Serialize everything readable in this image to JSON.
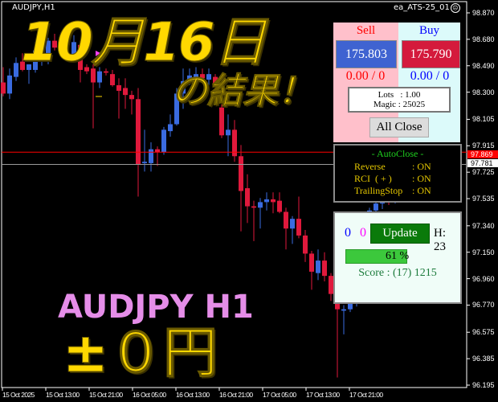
{
  "window": {
    "symbol_title": "AUDJPY,H1",
    "ea_name": "ea_ATS-25_01",
    "ea_status_icon": "sad-face-icon"
  },
  "overlay": {
    "headline_date": "10月16日",
    "headline_suffix": "の結果！",
    "pair_label": "AUDJPY H1",
    "result": "±０円",
    "colors": {
      "headline": "#ffd800",
      "pair": "#e58de8"
    }
  },
  "trade_panel": {
    "sell_label": "Sell",
    "buy_label": "Buy",
    "sell_price": "175.803",
    "buy_price": "175.790",
    "sell_pnl": "0.00 / 0",
    "buy_pnl": "0.00 / 0",
    "lots": "Lots   : 1.00",
    "magic": "Magic : 25025",
    "all_close_label": "All Close",
    "colors": {
      "sell": "#3f63d1",
      "buy": "#d41a3c"
    }
  },
  "autoclose": {
    "title": "- AutoClose -",
    "items": [
      {
        "label": "Reverse",
        "value": ": ON"
      },
      {
        "label": "RCI  ( + )",
        "value": ": ON"
      },
      {
        "label": "TrailingStop",
        "value": ": ON"
      }
    ]
  },
  "stats_panel": {
    "count_blue": "0",
    "count_magenta": "0",
    "update_label": "Update",
    "hours": "H: 23",
    "progress_percent": 61,
    "progress_text": "61 %",
    "score": "Score : (17) 1215"
  },
  "chart_data": {
    "type": "candlestick",
    "symbol": "AUDJPY",
    "timeframe": "H1",
    "ylim": [
      96.195,
      98.87
    ],
    "price_ticks": [
      "98.870",
      "98.680",
      "98.490",
      "98.300",
      "98.105",
      "97.915",
      "97.725",
      "97.535",
      "97.340",
      "97.150",
      "96.960",
      "96.770",
      "96.575",
      "96.385",
      "96.195"
    ],
    "time_ticks": [
      "15 Oct 2025",
      "15 Oct 13:00",
      "15 Oct 21:00",
      "16 Oct 05:00",
      "16 Oct 13:00",
      "16 Oct 21:00",
      "17 Oct 05:00",
      "17 Oct 13:00",
      "17 Oct 21:00"
    ],
    "ask_line": {
      "value": "97.869",
      "color": "#ff0000"
    },
    "bid_line": {
      "value": "97.781",
      "color": "#c0c0c0"
    },
    "colors": {
      "bull": "#3a6be0",
      "bear": "#e0193c"
    },
    "candles": [
      [
        98.37,
        98.48,
        98.27,
        98.29
      ],
      [
        98.29,
        98.47,
        98.25,
        98.42
      ],
      [
        98.41,
        98.55,
        98.38,
        98.51
      ],
      [
        98.52,
        98.58,
        98.45,
        98.46
      ],
      [
        98.46,
        98.5,
        98.36,
        98.5
      ],
      [
        98.46,
        98.66,
        98.44,
        98.6
      ],
      [
        98.55,
        98.69,
        98.49,
        98.56
      ],
      [
        98.54,
        98.69,
        98.5,
        98.67
      ],
      [
        98.67,
        98.72,
        98.6,
        98.62
      ],
      [
        98.66,
        98.73,
        98.62,
        98.68
      ],
      [
        98.68,
        98.74,
        98.6,
        98.64
      ],
      [
        98.55,
        98.71,
        98.52,
        98.66
      ],
      [
        98.64,
        98.67,
        98.37,
        98.46
      ],
      [
        98.48,
        98.5,
        98.43,
        98.45
      ],
      [
        98.47,
        98.5,
        98.04,
        98.37
      ],
      [
        98.37,
        98.48,
        98.33,
        98.45
      ],
      [
        98.45,
        98.47,
        98.42,
        98.44
      ],
      [
        98.43,
        98.46,
        98.34,
        98.35
      ],
      [
        98.35,
        98.4,
        98.11,
        98.31
      ],
      [
        98.33,
        98.4,
        98.18,
        98.28
      ],
      [
        98.28,
        98.31,
        98.14,
        98.25
      ],
      [
        98.25,
        98.33,
        97.55,
        97.78
      ],
      [
        97.79,
        98.03,
        97.73,
        97.8
      ],
      [
        97.79,
        97.94,
        97.73,
        97.89
      ],
      [
        97.89,
        97.91,
        97.77,
        97.87
      ],
      [
        97.87,
        98.05,
        97.85,
        98.03
      ],
      [
        98.02,
        98.14,
        97.98,
        98.07
      ],
      [
        98.07,
        98.33,
        98.06,
        98.29
      ],
      [
        98.29,
        98.47,
        98.18,
        98.38
      ],
      [
        98.38,
        98.47,
        98.35,
        98.42
      ],
      [
        98.39,
        98.48,
        98.34,
        98.43
      ],
      [
        98.43,
        98.47,
        98.37,
        98.4
      ],
      [
        98.39,
        98.47,
        98.33,
        98.43
      ],
      [
        98.41,
        98.43,
        98.29,
        98.35
      ],
      [
        98.19,
        98.31,
        97.97,
        97.99
      ],
      [
        97.99,
        98.14,
        97.84,
        98.03
      ],
      [
        98.03,
        98.1,
        97.8,
        97.84
      ],
      [
        97.84,
        97.92,
        97.3,
        97.59
      ],
      [
        97.61,
        97.71,
        97.36,
        97.48
      ],
      [
        97.48,
        97.52,
        97.23,
        97.47
      ],
      [
        97.47,
        97.54,
        97.32,
        97.51
      ],
      [
        97.51,
        97.58,
        97.45,
        97.53
      ],
      [
        97.53,
        97.58,
        97.43,
        97.51
      ],
      [
        97.52,
        97.58,
        97.43,
        97.44
      ],
      [
        97.44,
        97.47,
        97.17,
        97.32
      ],
      [
        97.32,
        97.41,
        97.21,
        97.39
      ],
      [
        97.39,
        97.55,
        97.25,
        97.27
      ],
      [
        97.27,
        97.31,
        97.08,
        97.14
      ],
      [
        97.14,
        97.16,
        96.88,
        97.01
      ],
      [
        97.0,
        97.17,
        96.95,
        97.09
      ],
      [
        97.09,
        97.15,
        96.94,
        96.98
      ],
      [
        96.98,
        97.0,
        96.8,
        96.85
      ],
      [
        96.78,
        96.8,
        96.25,
        96.74
      ],
      [
        96.73,
        96.77,
        96.56,
        96.74
      ],
      [
        96.74,
        96.8,
        96.72,
        96.78
      ],
      [
        96.78,
        96.98,
        96.76,
        96.95
      ],
      [
        96.95,
        97.22,
        96.93,
        97.2
      ],
      [
        97.2,
        97.47,
        97.18,
        97.45
      ],
      [
        97.45,
        97.55,
        97.4,
        97.5
      ],
      [
        97.5,
        97.58,
        97.46,
        97.55
      ],
      [
        97.55,
        97.57,
        97.49,
        97.52
      ],
      [
        97.52,
        97.6,
        97.5,
        97.58
      ],
      [
        97.58,
        97.82,
        97.55,
        97.78
      ]
    ]
  }
}
